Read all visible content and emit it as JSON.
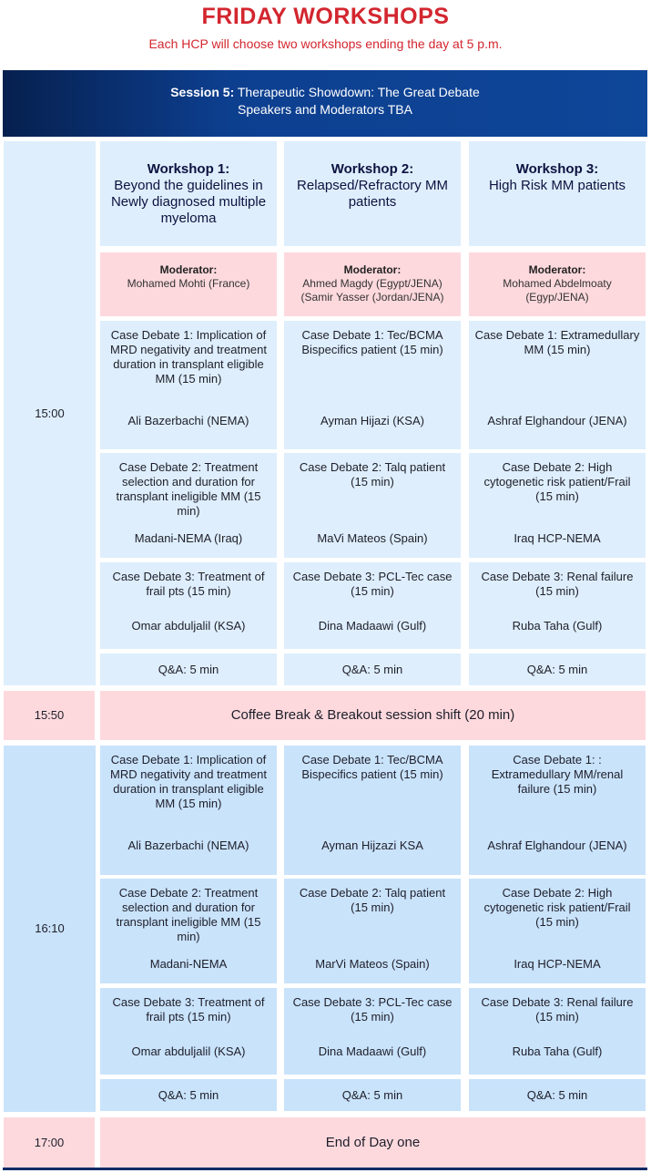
{
  "title": "FRIDAY WORKSHOPS",
  "subtitle": "Each HCP will choose two workshops ending the day at 5 p.m.",
  "banner": {
    "session_label": "Session 5:",
    "session_title": "Therapeutic Showdown: The Great Debate",
    "line2": "Speakers and Moderators TBA"
  },
  "workshops": [
    {
      "label": "Workshop 1:",
      "title": "Beyond the guidelines in Newly diagnosed multiple myeloma",
      "moderator_label": "Moderator:",
      "moderator": "Mohamed Mohti (France)"
    },
    {
      "label": "Workshop 2:",
      "title": "Relapsed/Refractory MM patients",
      "moderator_label": "Moderator:",
      "moderator": "Ahmed Magdy (Egypt/JENA) (Samir Yasser (Jordan/JENA)"
    },
    {
      "label": "Workshop 3:",
      "title": "High Risk MM patients",
      "moderator_label": "Moderator:",
      "moderator": "Mohamed Abdelmoaty (Egyp/JENA)"
    }
  ],
  "session1": {
    "time": "15:00",
    "rows": [
      [
        {
          "topic": "Case Debate 1: Implication of MRD negativity and treatment duration in transplant eligible MM (15 min)",
          "speaker": "Ali Bazerbachi (NEMA)"
        },
        {
          "topic": "Case Debate 1: Tec/BCMA Bispecifics patient (15 min)",
          "speaker": "Ayman Hijazi (KSA)"
        },
        {
          "topic": "Case Debate 1: Extramedullary MM (15 min)",
          "speaker": "Ashraf Elghandour (JENA)"
        }
      ],
      [
        {
          "topic": "Case Debate 2: Treatment selection and duration for transplant ineligible MM (15 min)",
          "speaker": "Madani-NEMA (Iraq)"
        },
        {
          "topic": "Case Debate 2: Talq patient (15 min)",
          "speaker": "MaVi Mateos (Spain)"
        },
        {
          "topic": "Case Debate 2: High cytogenetic risk patient/Frail (15 min)",
          "speaker": "Iraq HCP-NEMA"
        }
      ],
      [
        {
          "topic": "Case Debate 3: Treatment of frail pts (15 min)",
          "speaker": "Omar abduljalil (KSA)"
        },
        {
          "topic": "Case Debate 3: PCL-Tec case (15 min)",
          "speaker": "Dina Madaawi (Gulf)"
        },
        {
          "topic": "Case Debate 3: Renal failure (15 min)",
          "speaker": "Ruba Taha (Gulf)"
        }
      ]
    ],
    "qa": [
      "Q&A: 5 min",
      "Q&A: 5 min",
      "Q&A: 5 min"
    ]
  },
  "break": {
    "time": "15:50",
    "label": "Coffee Break & Breakout session shift (20 min)"
  },
  "session2": {
    "time": "16:10",
    "rows": [
      [
        {
          "topic": "Case Debate 1: Implication of MRD negativity and treatment duration in transplant eligible MM (15 min)",
          "speaker": "Ali Bazerbachi (NEMA)"
        },
        {
          "topic": "Case Debate 1: Tec/BCMA Bispecifics patient (15 min)",
          "speaker": "Ayman Hijzazi KSA"
        },
        {
          "topic": "Case Debate 1: : Extramedullary MM/renal failure (15 min)",
          "speaker": "Ashraf Elghandour (JENA)"
        }
      ],
      [
        {
          "topic": "Case Debate 2: Treatment selection and duration for transplant ineligible MM (15 min)",
          "speaker": "Madani-NEMA"
        },
        {
          "topic": "Case Debate 2: Talq patient (15 min)",
          "speaker": "MarVi Mateos (Spain)"
        },
        {
          "topic": "Case Debate 2: High cytogenetic risk patient/Frail (15 min)",
          "speaker": "Iraq HCP-NEMA"
        }
      ],
      [
        {
          "topic": "Case Debate 3: Treatment of frail pts (15 min)",
          "speaker": "Omar abduljalil (KSA)"
        },
        {
          "topic": "Case Debate 3: PCL-Tec case (15 min)",
          "speaker": "Dina Madaawi (Gulf)"
        },
        {
          "topic": "Case Debate 3: Renal failure (15 min)",
          "speaker": "Ruba Taha (Gulf)"
        }
      ]
    ],
    "qa": [
      "Q&A: 5 min",
      "Q&A: 5 min",
      "Q&A: 5 min"
    ]
  },
  "end": {
    "time": "17:00",
    "label": "End of Day one"
  },
  "colors": {
    "title_red": "#d3262f",
    "banner_navy": "#0d3f8f",
    "session1_blue": "#deeefc",
    "session2_blue": "#c9e3fb",
    "pink": "#fdd9dd"
  }
}
